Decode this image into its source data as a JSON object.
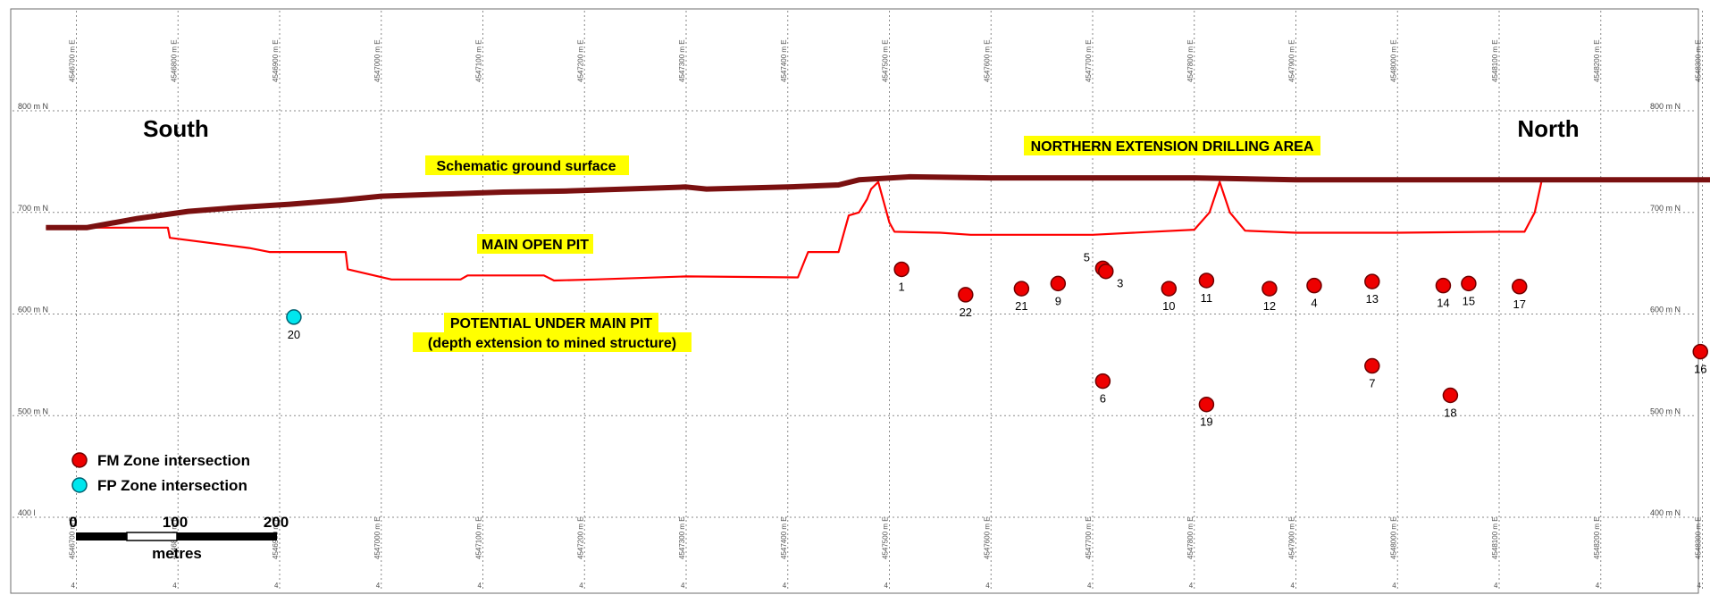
{
  "title_left": "South",
  "title_right": "North",
  "labels": {
    "ground_surface": "Schematic ground surface",
    "northern_extension": "NORTHERN EXTENSION DRILLING AREA",
    "main_open_pit": "MAIN OPEN PIT",
    "potential_1": "POTENTIAL UNDER MAIN PIT",
    "potential_2": "(depth extension to mined structure)"
  },
  "elevation_labels": [
    {
      "value": 800,
      "text": "800 m N"
    },
    {
      "value": 700,
      "text": "700 m N"
    },
    {
      "value": 600,
      "text": "600 m N"
    },
    {
      "value": 500,
      "text": "500 m N"
    },
    {
      "value": 400,
      "text": "400 m N"
    }
  ],
  "elevation_labels_left": [
    "800 m N",
    "700 m N",
    "600 m N",
    "500 m N",
    "400 l"
  ],
  "easting_labels": [
    "4546700 m E",
    "4546800 m E",
    "4546900 m E",
    "4547000 m E",
    "4547100 m E",
    "4547200 m E",
    "4547300 m E",
    "4547400 m E",
    "4547500 m E",
    "4547600 m E",
    "4547700 m E",
    "4547800 m E",
    "4547900 m E",
    "4548000 m E",
    "4548100 m E",
    "4548200 m E",
    "4548300 m E"
  ],
  "legend": {
    "fm_label": "FM Zone intersection",
    "fp_label": "FP Zone intersection",
    "fm_color": "#ee0000",
    "fp_color": "#00e6ee"
  },
  "scale_bar": {
    "ticks": [
      "0",
      "100",
      "200"
    ],
    "unit": "metres"
  },
  "colors": {
    "ground_surface": "#7a1010",
    "pit_outline": "#ff0000",
    "highlight": "#ffff00"
  },
  "intersections": [
    {
      "id": "1",
      "zone": "FM",
      "easting": 4547512,
      "elevation": 644
    },
    {
      "id": "22",
      "zone": "FM",
      "easting": 4547575,
      "elevation": 619
    },
    {
      "id": "21",
      "zone": "FM",
      "easting": 4547630,
      "elevation": 625
    },
    {
      "id": "9",
      "zone": "FM",
      "easting": 4547666,
      "elevation": 630
    },
    {
      "id": "5",
      "zone": "FM",
      "easting": 4547710,
      "elevation": 645
    },
    {
      "id": "3",
      "zone": "FM",
      "easting": 4547713,
      "elevation": 642
    },
    {
      "id": "10",
      "zone": "FM",
      "easting": 4547775,
      "elevation": 625
    },
    {
      "id": "11",
      "zone": "FM",
      "easting": 4547812,
      "elevation": 633
    },
    {
      "id": "12",
      "zone": "FM",
      "easting": 4547874,
      "elevation": 625
    },
    {
      "id": "4",
      "zone": "FM",
      "easting": 4547918,
      "elevation": 628
    },
    {
      "id": "13",
      "zone": "FM",
      "easting": 4547975,
      "elevation": 632
    },
    {
      "id": "14",
      "zone": "FM",
      "easting": 4548045,
      "elevation": 628
    },
    {
      "id": "15",
      "zone": "FM",
      "easting": 4548070,
      "elevation": 630
    },
    {
      "id": "17",
      "zone": "FM",
      "easting": 4548120,
      "elevation": 627
    },
    {
      "id": "16",
      "zone": "FM",
      "easting": 4548298,
      "elevation": 563
    },
    {
      "id": "6",
      "zone": "FM",
      "easting": 4547710,
      "elevation": 534
    },
    {
      "id": "7",
      "zone": "FM",
      "easting": 4547975,
      "elevation": 549
    },
    {
      "id": "18",
      "zone": "FM",
      "easting": 4548052,
      "elevation": 520
    },
    {
      "id": "19",
      "zone": "FM",
      "easting": 4547812,
      "elevation": 511
    },
    {
      "id": "20",
      "zone": "FP",
      "easting": 4546914,
      "elevation": 597
    }
  ],
  "ground_surface": [
    [
      4546670,
      685
    ],
    [
      4546710,
      685
    ],
    [
      4546760,
      694
    ],
    [
      4546810,
      701
    ],
    [
      4546860,
      705
    ],
    [
      4546910,
      708
    ],
    [
      4546960,
      712
    ],
    [
      4547000,
      716
    ],
    [
      4547060,
      718
    ],
    [
      4547120,
      720
    ],
    [
      4547180,
      721
    ],
    [
      4547240,
      723
    ],
    [
      4547300,
      725
    ],
    [
      4547320,
      723
    ],
    [
      4547400,
      725
    ],
    [
      4547450,
      727
    ],
    [
      4547470,
      732
    ],
    [
      4547520,
      735
    ],
    [
      4547600,
      734
    ],
    [
      4547700,
      734
    ],
    [
      4547800,
      734
    ],
    [
      4547900,
      732
    ],
    [
      4548100,
      732
    ],
    [
      4548320,
      732
    ]
  ],
  "pit_outline": [
    [
      4546670,
      685
    ],
    [
      4546790,
      685
    ],
    [
      4546792,
      675
    ],
    [
      4546870,
      665
    ],
    [
      4546890,
      661
    ],
    [
      4546965,
      661
    ],
    [
      4546967,
      644
    ],
    [
      4547010,
      634
    ],
    [
      4547078,
      634
    ],
    [
      4547085,
      638
    ],
    [
      4547160,
      638
    ],
    [
      4547170,
      633
    ],
    [
      4547210,
      634
    ],
    [
      4547300,
      637
    ],
    [
      4547410,
      636
    ],
    [
      4547420,
      661
    ],
    [
      4547450,
      661
    ],
    [
      4547460,
      697
    ],
    [
      4547470,
      700
    ],
    [
      4547478,
      713
    ],
    [
      4547482,
      723
    ],
    [
      4547489,
      730
    ],
    [
      4547500,
      690
    ],
    [
      4547505,
      681
    ],
    [
      4547550,
      680
    ],
    [
      4547580,
      678
    ],
    [
      4547700,
      678
    ],
    [
      4547800,
      683
    ],
    [
      4547815,
      700
    ],
    [
      4547825,
      730
    ],
    [
      4547835,
      700
    ],
    [
      4547850,
      682
    ],
    [
      4547900,
      680
    ],
    [
      4548000,
      680
    ],
    [
      4548100,
      681
    ],
    [
      4548125,
      681
    ],
    [
      4548135,
      700
    ],
    [
      4548142,
      732
    ]
  ]
}
